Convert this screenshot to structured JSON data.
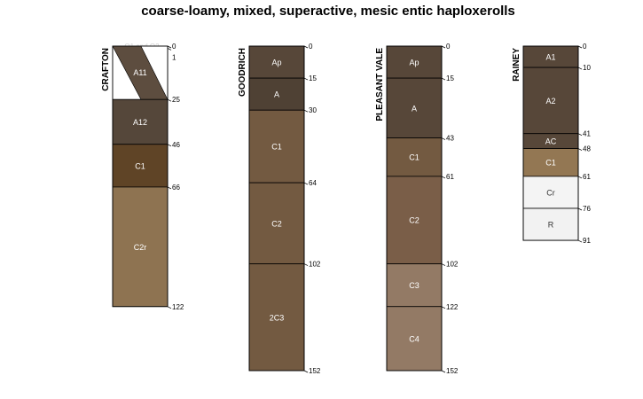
{
  "title": "coarse-loamy, mixed, superactive, mesic entic haploxerolls",
  "depth_max": 152,
  "profiles": [
    {
      "name": "CRAFTON",
      "horizons": [
        {
          "label": "O1 and O2",
          "top": 0,
          "bottom": 1,
          "color": "#3a3330",
          "label_color": "#d0d0d0"
        },
        {
          "label": "A11",
          "top": 1,
          "bottom": 25,
          "color": "#5d4d3f",
          "label_color": "#ffffff"
        },
        {
          "label": "A12",
          "top": 25,
          "bottom": 46,
          "color": "#55473a",
          "label_color": "#ffffff"
        },
        {
          "label": "C1",
          "top": 46,
          "bottom": 66,
          "color": "#5f4426",
          "label_color": "#ffffff"
        },
        {
          "label": "C2r",
          "top": 66,
          "bottom": 122,
          "color": "#8e7351",
          "label_color": "#ffffff"
        }
      ],
      "depth_labels": [
        "0",
        "1",
        "25",
        "46",
        "66",
        "122"
      ]
    },
    {
      "name": "GOODRICH",
      "horizons": [
        {
          "label": "Ap",
          "top": 0,
          "bottom": 15,
          "color": "#574739",
          "label_color": "#ffffff"
        },
        {
          "label": "A",
          "top": 15,
          "bottom": 30,
          "color": "#4f4134",
          "label_color": "#ffffff"
        },
        {
          "label": "C1",
          "top": 30,
          "bottom": 64,
          "color": "#735a41",
          "label_color": "#ffffff"
        },
        {
          "label": "C2",
          "top": 64,
          "bottom": 102,
          "color": "#735a41",
          "label_color": "#ffffff"
        },
        {
          "label": "2C3",
          "top": 102,
          "bottom": 152,
          "color": "#735a41",
          "label_color": "#ffffff"
        }
      ],
      "depth_labels": [
        "0",
        "15",
        "30",
        "64",
        "102",
        "152"
      ]
    },
    {
      "name": "PLEASANT VALE",
      "horizons": [
        {
          "label": "Ap",
          "top": 0,
          "bottom": 15,
          "color": "#574739",
          "label_color": "#ffffff"
        },
        {
          "label": "A",
          "top": 15,
          "bottom": 43,
          "color": "#574739",
          "label_color": "#ffffff"
        },
        {
          "label": "C1",
          "top": 43,
          "bottom": 61,
          "color": "#735a41",
          "label_color": "#ffffff"
        },
        {
          "label": "C2",
          "top": 61,
          "bottom": 102,
          "color": "#7a5e48",
          "label_color": "#ffffff"
        },
        {
          "label": "C3",
          "top": 102,
          "bottom": 122,
          "color": "#937a65",
          "label_color": "#ffffff"
        },
        {
          "label": "C4",
          "top": 122,
          "bottom": 152,
          "color": "#937a65",
          "label_color": "#ffffff"
        }
      ],
      "depth_labels": [
        "0",
        "15",
        "43",
        "61",
        "102",
        "122",
        "152"
      ]
    },
    {
      "name": "RAINEY",
      "horizons": [
        {
          "label": "A1",
          "top": 0,
          "bottom": 10,
          "color": "#574739",
          "label_color": "#ffffff"
        },
        {
          "label": "A2",
          "top": 10,
          "bottom": 41,
          "color": "#574739",
          "label_color": "#ffffff"
        },
        {
          "label": "AC",
          "top": 41,
          "bottom": 48,
          "color": "#574739",
          "label_color": "#ffffff"
        },
        {
          "label": "C1",
          "top": 48,
          "bottom": 61,
          "color": "#937753",
          "label_color": "#ffffff"
        },
        {
          "label": "Cr",
          "top": 61,
          "bottom": 76,
          "color": "#f4f4f4",
          "label_color": "#333333"
        },
        {
          "label": "R",
          "top": 76,
          "bottom": 91,
          "color": "#f2f2f2",
          "label_color": "#333333"
        }
      ],
      "depth_labels": [
        "0",
        "10",
        "41",
        "48",
        "61",
        "76",
        "91"
      ]
    }
  ]
}
